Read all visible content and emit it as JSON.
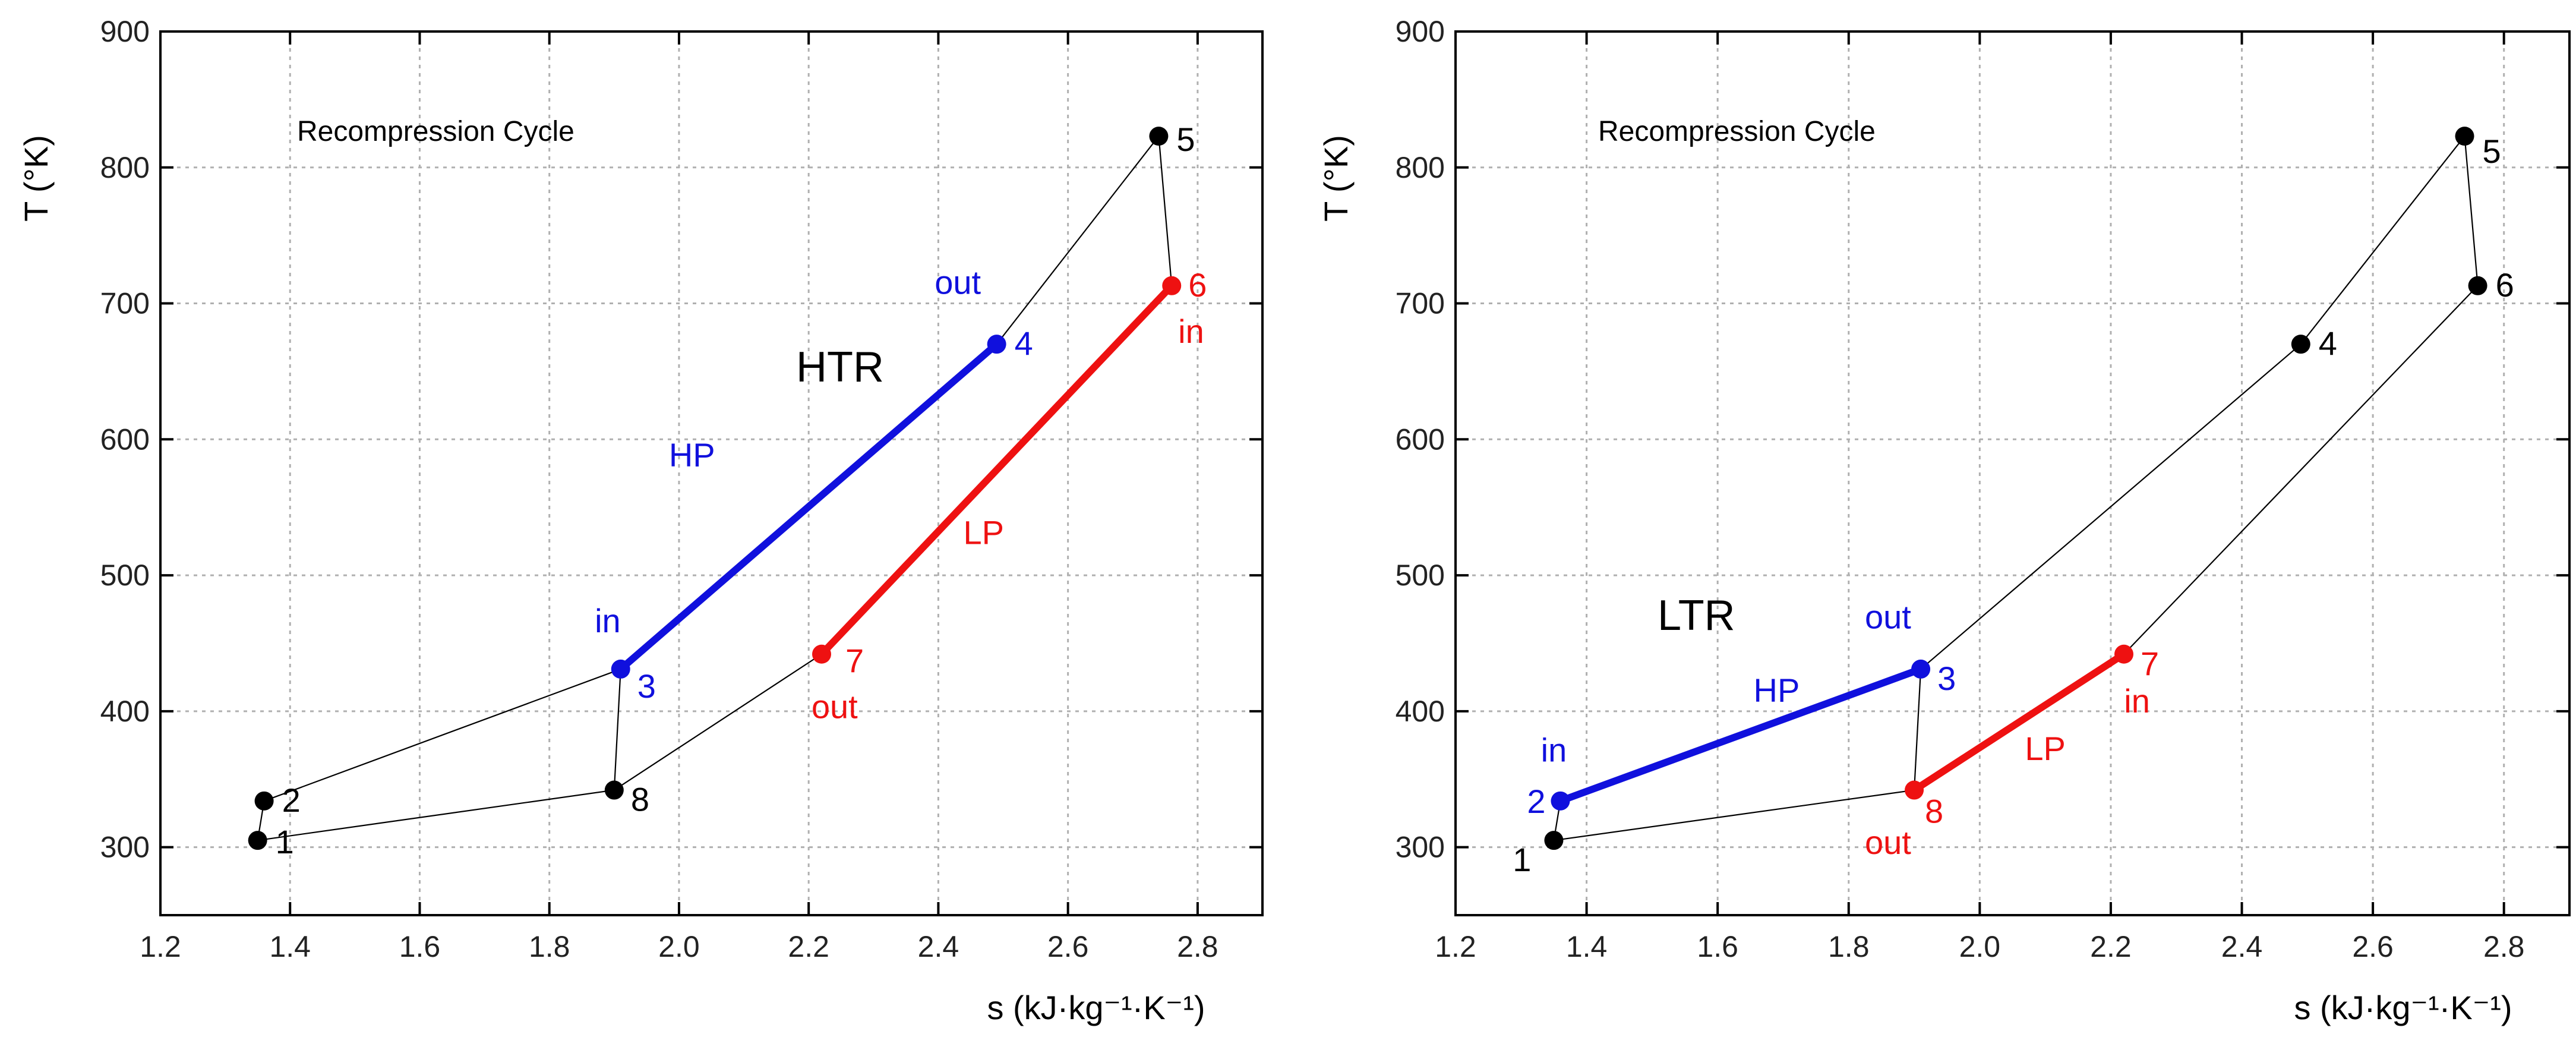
{
  "colors": {
    "hp": "#1010dd",
    "lp": "#ee1111",
    "cycle": "#000000",
    "grid": "#b0b0b0"
  },
  "chart_data": [
    {
      "type": "line",
      "title": "Recompression Cycle",
      "exchanger_label": "HTR",
      "xlabel": "s (kJ·kg⁻¹·K⁻¹)",
      "ylabel": "T (°K)",
      "xlim": [
        1.2,
        2.9
      ],
      "ylim": [
        250,
        900
      ],
      "xticks": [
        1.2,
        1.4,
        1.6,
        1.8,
        2.0,
        2.2,
        2.4,
        2.6,
        2.8
      ],
      "xtick_labels": [
        "1.2",
        "1.4",
        "1.6",
        "1.8",
        "2.0",
        "2.2",
        "2.4",
        "2.6",
        "2.8"
      ],
      "yticks": [
        300,
        400,
        500,
        600,
        700,
        800,
        900
      ],
      "ytick_labels": [
        "300",
        "400",
        "500",
        "600",
        "700",
        "800",
        "900"
      ],
      "grid": true,
      "cycle_points": [
        {
          "id": "1",
          "label": "1",
          "s": 1.35,
          "T": 305,
          "color": "cycle"
        },
        {
          "id": "2",
          "label": "2",
          "s": 1.36,
          "T": 334,
          "color": "cycle"
        },
        {
          "id": "3",
          "label": "3",
          "s": 1.91,
          "T": 431,
          "color": "hp"
        },
        {
          "id": "4",
          "label": "4",
          "s": 2.49,
          "T": 670,
          "color": "hp"
        },
        {
          "id": "5",
          "label": "5",
          "s": 2.74,
          "T": 823,
          "color": "cycle"
        },
        {
          "id": "6",
          "label": "6",
          "s": 2.76,
          "T": 713,
          "color": "lp"
        },
        {
          "id": "7",
          "label": "7",
          "s": 2.22,
          "T": 442,
          "color": "lp"
        },
        {
          "id": "8",
          "label": "8",
          "s": 1.9,
          "T": 342,
          "color": "cycle"
        }
      ],
      "cycle_connections": [
        [
          "1",
          "2"
        ],
        [
          "2",
          "3"
        ],
        [
          "3",
          "8"
        ],
        [
          "8",
          "1"
        ],
        [
          "4",
          "5"
        ],
        [
          "5",
          "6"
        ],
        [
          "7",
          "8"
        ]
      ],
      "streams": [
        {
          "name": "HP",
          "from": "3",
          "to": "4",
          "color": "hp"
        },
        {
          "name": "LP",
          "from": "6",
          "to": "7",
          "color": "lp"
        }
      ],
      "annotations": [
        {
          "text": "in",
          "s": 1.89,
          "T": 458,
          "color": "hp"
        },
        {
          "text": "out",
          "s": 2.43,
          "T": 707,
          "color": "hp"
        },
        {
          "text": "HP",
          "s": 2.02,
          "T": 580,
          "color": "hp"
        },
        {
          "text": "LP",
          "s": 2.47,
          "T": 523,
          "color": "lp"
        },
        {
          "text": "in",
          "s": 2.79,
          "T": 671,
          "color": "lp"
        },
        {
          "text": "out",
          "s": 2.24,
          "T": 395,
          "color": "lp"
        }
      ]
    },
    {
      "type": "line",
      "title": "Recompression Cycle",
      "exchanger_label": "LTR",
      "xlabel": "s (kJ·kg⁻¹·K⁻¹)",
      "ylabel": "T (°K)",
      "xlim": [
        1.2,
        2.9
      ],
      "ylim": [
        250,
        900
      ],
      "xticks": [
        1.2,
        1.4,
        1.6,
        1.8,
        2.0,
        2.2,
        2.4,
        2.6,
        2.8
      ],
      "xtick_labels": [
        "1.2",
        "1.4",
        "1.6",
        "1.8",
        "2.0",
        "2.2",
        "2.4",
        "2.6",
        "2.8"
      ],
      "yticks": [
        300,
        400,
        500,
        600,
        700,
        800,
        900
      ],
      "ytick_labels": [
        "300",
        "400",
        "500",
        "600",
        "700",
        "800",
        "900"
      ],
      "grid": true,
      "cycle_points": [
        {
          "id": "1",
          "label": "1",
          "s": 1.35,
          "T": 305,
          "color": "cycle"
        },
        {
          "id": "2",
          "label": "2",
          "s": 1.36,
          "T": 334,
          "color": "hp"
        },
        {
          "id": "3",
          "label": "3",
          "s": 1.91,
          "T": 431,
          "color": "hp"
        },
        {
          "id": "4",
          "label": "4",
          "s": 2.49,
          "T": 670,
          "color": "cycle"
        },
        {
          "id": "5",
          "label": "5",
          "s": 2.74,
          "T": 823,
          "color": "cycle"
        },
        {
          "id": "6",
          "label": "6",
          "s": 2.76,
          "T": 713,
          "color": "cycle"
        },
        {
          "id": "7",
          "label": "7",
          "s": 2.22,
          "T": 442,
          "color": "lp"
        },
        {
          "id": "8",
          "label": "8",
          "s": 1.9,
          "T": 342,
          "color": "lp"
        }
      ],
      "cycle_connections": [
        [
          "1",
          "8"
        ],
        [
          "8",
          "3"
        ],
        [
          "3",
          "4"
        ],
        [
          "4",
          "5"
        ],
        [
          "5",
          "6"
        ],
        [
          "6",
          "7"
        ],
        [
          "1",
          "2"
        ]
      ],
      "streams": [
        {
          "name": "HP",
          "from": "2",
          "to": "3",
          "color": "hp"
        },
        {
          "name": "LP",
          "from": "7",
          "to": "8",
          "color": "lp"
        }
      ],
      "annotations": [
        {
          "text": "in",
          "s": 1.35,
          "T": 363,
          "color": "hp"
        },
        {
          "text": "out",
          "s": 1.86,
          "T": 461,
          "color": "hp"
        },
        {
          "text": "HP",
          "s": 1.69,
          "T": 407,
          "color": "hp"
        },
        {
          "text": "LP",
          "s": 2.1,
          "T": 364,
          "color": "lp"
        },
        {
          "text": "in",
          "s": 2.24,
          "T": 399,
          "color": "lp"
        },
        {
          "text": "out",
          "s": 1.86,
          "T": 295,
          "color": "lp"
        }
      ]
    }
  ]
}
